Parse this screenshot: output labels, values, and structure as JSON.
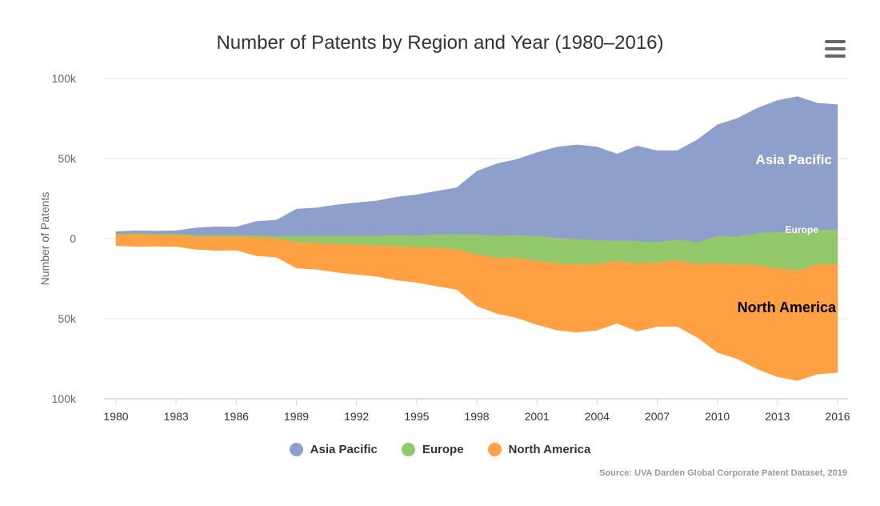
{
  "chart_data": {
    "type": "area",
    "title": "Number of Patents by Region and Year (1980–2016)",
    "ylabel": "Number of Patents",
    "source": "Source: UVA Darden Global Corporate Patent Dataset, 2019",
    "x": [
      1980,
      1981,
      1982,
      1983,
      1984,
      1985,
      1986,
      1987,
      1988,
      1989,
      1990,
      1991,
      1992,
      1993,
      1994,
      1995,
      1996,
      1997,
      1998,
      1999,
      2000,
      2001,
      2002,
      2003,
      2004,
      2005,
      2006,
      2007,
      2008,
      2009,
      2010,
      2011,
      2012,
      2013,
      2014,
      2015,
      2016
    ],
    "x_ticks": [
      "1980",
      "1983",
      "1986",
      "1989",
      "1992",
      "1995",
      "1998",
      "2001",
      "2004",
      "2007",
      "2010",
      "2013",
      "2016"
    ],
    "y_ticks": [
      "100k",
      "50k",
      "0",
      "50k",
      "100k"
    ],
    "ylim": [
      -100000,
      100000
    ],
    "stream_offset": "center",
    "series": [
      {
        "name": "North America",
        "color": "#ffa042",
        "values": [
          6900,
          7600,
          7200,
          7200,
          8100,
          8800,
          8600,
          11600,
          11800,
          16200,
          16500,
          17700,
          18600,
          19400,
          21300,
          22000,
          23900,
          25400,
          32200,
          34900,
          37600,
          39900,
          41900,
          42500,
          41600,
          38900,
          42400,
          40000,
          41500,
          45800,
          55900,
          59000,
          65100,
          67800,
          68900,
          68600,
          67900
        ]
      },
      {
        "name": "Europe",
        "color": "#92c86a",
        "values": [
          700,
          900,
          600,
          800,
          900,
          1000,
          900,
          1200,
          1300,
          4100,
          4600,
          5200,
          5600,
          6100,
          6900,
          7400,
          8400,
          9200,
          12500,
          13600,
          14200,
          15500,
          15800,
          15900,
          14600,
          12800,
          14000,
          12900,
          13000,
          13700,
          16800,
          17300,
          20000,
          22600,
          23300,
          21700,
          21300
        ]
      },
      {
        "name": "Asia Pacific",
        "color": "#8f9fcc",
        "values": [
          1100,
          1400,
          1700,
          1900,
          4400,
          5000,
          5000,
          8700,
          10000,
          16600,
          17300,
          19200,
          20600,
          21600,
          23700,
          25400,
          26900,
          29000,
          39400,
          45000,
          47200,
          52000,
          56600,
          58700,
          58300,
          54000,
          59300,
          56900,
          55400,
          63900,
          69500,
          73800,
          77900,
          82100,
          85200,
          78900,
          78100
        ]
      }
    ],
    "grid": true,
    "legend_position": "bottom-center"
  },
  "labels": {
    "north_america": "North America",
    "europe": "Europe",
    "asia_pacific": "Asia Pacific"
  },
  "menu": {
    "icon": "hamburger-menu-icon"
  }
}
